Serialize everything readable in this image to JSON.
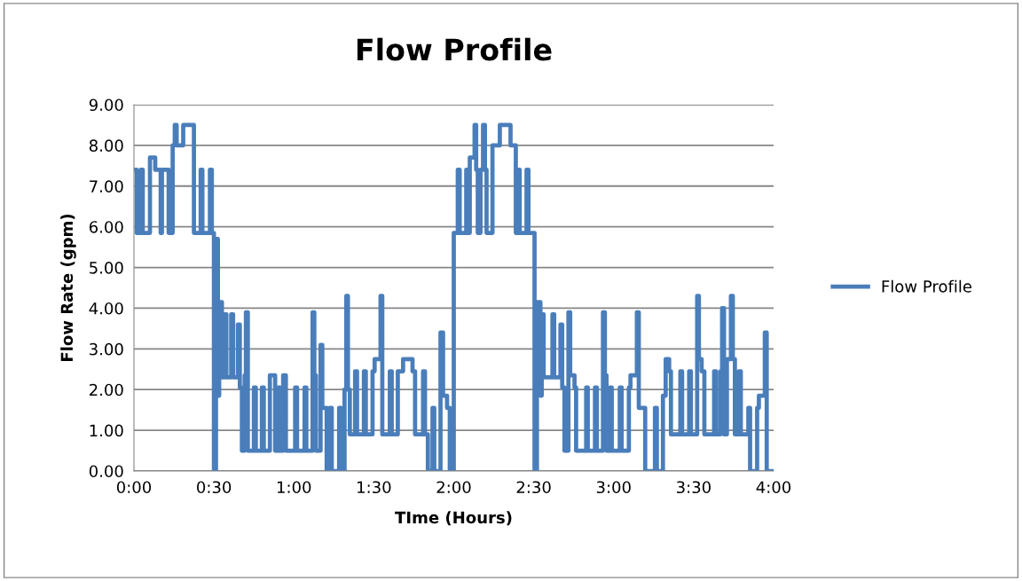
{
  "chart_data": {
    "type": "step",
    "title": "Flow Profile",
    "xlabel": "TIme (Hours)",
    "ylabel": "Flow Rate (gpm)",
    "xlim": [
      0,
      4
    ],
    "xticks": [
      {
        "value": 0,
        "label": "0:00"
      },
      {
        "value": 0.5,
        "label": "0:30"
      },
      {
        "value": 1,
        "label": "1:00"
      },
      {
        "value": 1.5,
        "label": "1:30"
      },
      {
        "value": 2,
        "label": "2:00"
      },
      {
        "value": 2.5,
        "label": "2:30"
      },
      {
        "value": 3,
        "label": "3:00"
      },
      {
        "value": 3.5,
        "label": "3:30"
      },
      {
        "value": 4,
        "label": "4:00"
      }
    ],
    "ylim": [
      0,
      9
    ],
    "yticks": [
      {
        "value": 0,
        "label": "0.00"
      },
      {
        "value": 1,
        "label": "1.00"
      },
      {
        "value": 2,
        "label": "2.00"
      },
      {
        "value": 3,
        "label": "3.00"
      },
      {
        "value": 4,
        "label": "4.00"
      },
      {
        "value": 5,
        "label": "5.00"
      },
      {
        "value": 6,
        "label": "6.00"
      },
      {
        "value": 7,
        "label": "7.00"
      },
      {
        "value": 8,
        "label": "8.00"
      },
      {
        "value": 9,
        "label": "9.00"
      }
    ],
    "grid": "y",
    "legend": "right",
    "series": [
      {
        "name": "Flow Profile",
        "color": "#4a7ebb",
        "x": [
          0,
          0.017,
          0.042,
          0.055,
          0.1,
          0.133,
          0.167,
          0.175,
          0.217,
          0.242,
          0.255,
          0.267,
          0.308,
          0.375,
          0.417,
          0.428,
          0.475,
          0.487,
          0.5,
          0.513,
          0.525,
          0.533,
          0.55,
          0.567,
          0.578,
          0.608,
          0.62,
          0.65,
          0.662,
          0.675,
          0.692,
          0.7,
          0.712,
          0.75,
          0.762,
          0.8,
          0.812,
          0.85,
          0.883,
          0.9,
          0.912,
          0.933,
          0.95,
          1.008,
          1.02,
          1.067,
          1.078,
          1.117,
          1.128,
          1.138,
          1.167,
          1.178,
          1.205,
          1.225,
          1.237,
          1.283,
          1.295,
          1.317,
          1.328,
          1.338,
          1.35,
          1.383,
          1.395,
          1.438,
          1.45,
          1.492,
          1.505,
          1.542,
          1.553,
          1.6,
          1.612,
          1.65,
          1.683,
          1.742,
          1.758,
          1.808,
          1.82,
          1.838,
          1.867,
          1.878,
          1.917,
          1.933,
          1.958,
          1.975,
          2.0,
          2.025,
          2.037,
          2.078,
          2.09,
          2.1,
          2.13,
          2.14,
          2.15,
          2.167,
          2.183,
          2.195,
          2.205,
          2.242,
          2.288,
          2.355,
          2.388,
          2.4,
          2.412,
          2.455,
          2.467,
          2.505,
          2.52,
          2.542,
          2.55,
          2.562,
          2.617,
          2.628,
          2.667,
          2.678,
          2.692,
          2.717,
          2.728,
          2.755,
          2.765,
          2.828,
          2.838,
          2.883,
          2.895,
          2.933,
          2.945,
          2.955,
          2.978,
          2.988,
          3.038,
          3.05,
          3.095,
          3.105,
          3.145,
          3.157,
          3.197,
          3.258,
          3.27,
          3.308,
          3.325,
          3.347,
          3.358,
          3.417,
          3.428,
          3.472,
          3.483,
          3.522,
          3.533,
          3.55,
          3.567,
          3.628,
          3.64,
          3.667,
          3.678,
          3.69,
          3.708,
          3.733,
          3.745,
          3.758,
          3.783,
          3.795,
          3.842,
          3.853,
          3.897,
          3.908,
          3.945,
          3.957,
          4.0
        ],
        "values": [
          7.4,
          5.85,
          7.4,
          5.85,
          7.7,
          7.4,
          5.85,
          7.4,
          5.85,
          8.0,
          8.5,
          8.0,
          8.5,
          5.85,
          7.4,
          5.85,
          7.4,
          5.85,
          0,
          5.7,
          1.85,
          4.15,
          2.3,
          3.85,
          2.3,
          3.85,
          2.3,
          3.6,
          2.05,
          0.5,
          2.35,
          3.9,
          0.5,
          2.05,
          0.5,
          2.05,
          0.5,
          2.35,
          0.5,
          2.05,
          0.5,
          2.35,
          0.5,
          2.05,
          0.5,
          2.05,
          0.5,
          3.9,
          2.35,
          0.5,
          3.1,
          1.55,
          0,
          1.55,
          0,
          1.55,
          0,
          2.0,
          4.3,
          2.0,
          0.9,
          2.45,
          0.9,
          2.45,
          0.9,
          2.45,
          2.75,
          4.3,
          0.9,
          2.45,
          0.9,
          2.45,
          2.75,
          2.45,
          0.9,
          2.45,
          0.9,
          0,
          1.55,
          0,
          3.4,
          1.85,
          1.55,
          0,
          5.85,
          7.4,
          5.85,
          7.4,
          5.85,
          7.7,
          8.5,
          7.4,
          5.85,
          7.4,
          8.5,
          7.4,
          5.85,
          8.0,
          8.5,
          8.0,
          5.85,
          7.4,
          5.85,
          7.4,
          5.85,
          0,
          4.15,
          1.85,
          3.85,
          2.3,
          3.85,
          2.3,
          3.6,
          2.05,
          0.5,
          3.9,
          2.35,
          2.05,
          0.5,
          2.05,
          0.5,
          2.05,
          0.5,
          3.9,
          2.35,
          0.5,
          2.05,
          0.5,
          2.05,
          0.5,
          2.05,
          2.35,
          3.9,
          1.55,
          0,
          1.55,
          0,
          1.85,
          2.75,
          2.45,
          0.9,
          2.45,
          0.9,
          2.45,
          0.9,
          4.3,
          2.75,
          2.45,
          0.9,
          2.45,
          0.9,
          2.45,
          4.0,
          0.9,
          2.75,
          4.3,
          2.75,
          0.9,
          2.45,
          0.9,
          1.55,
          0,
          1.55,
          1.85,
          3.4,
          0,
          0
        ]
      }
    ]
  }
}
